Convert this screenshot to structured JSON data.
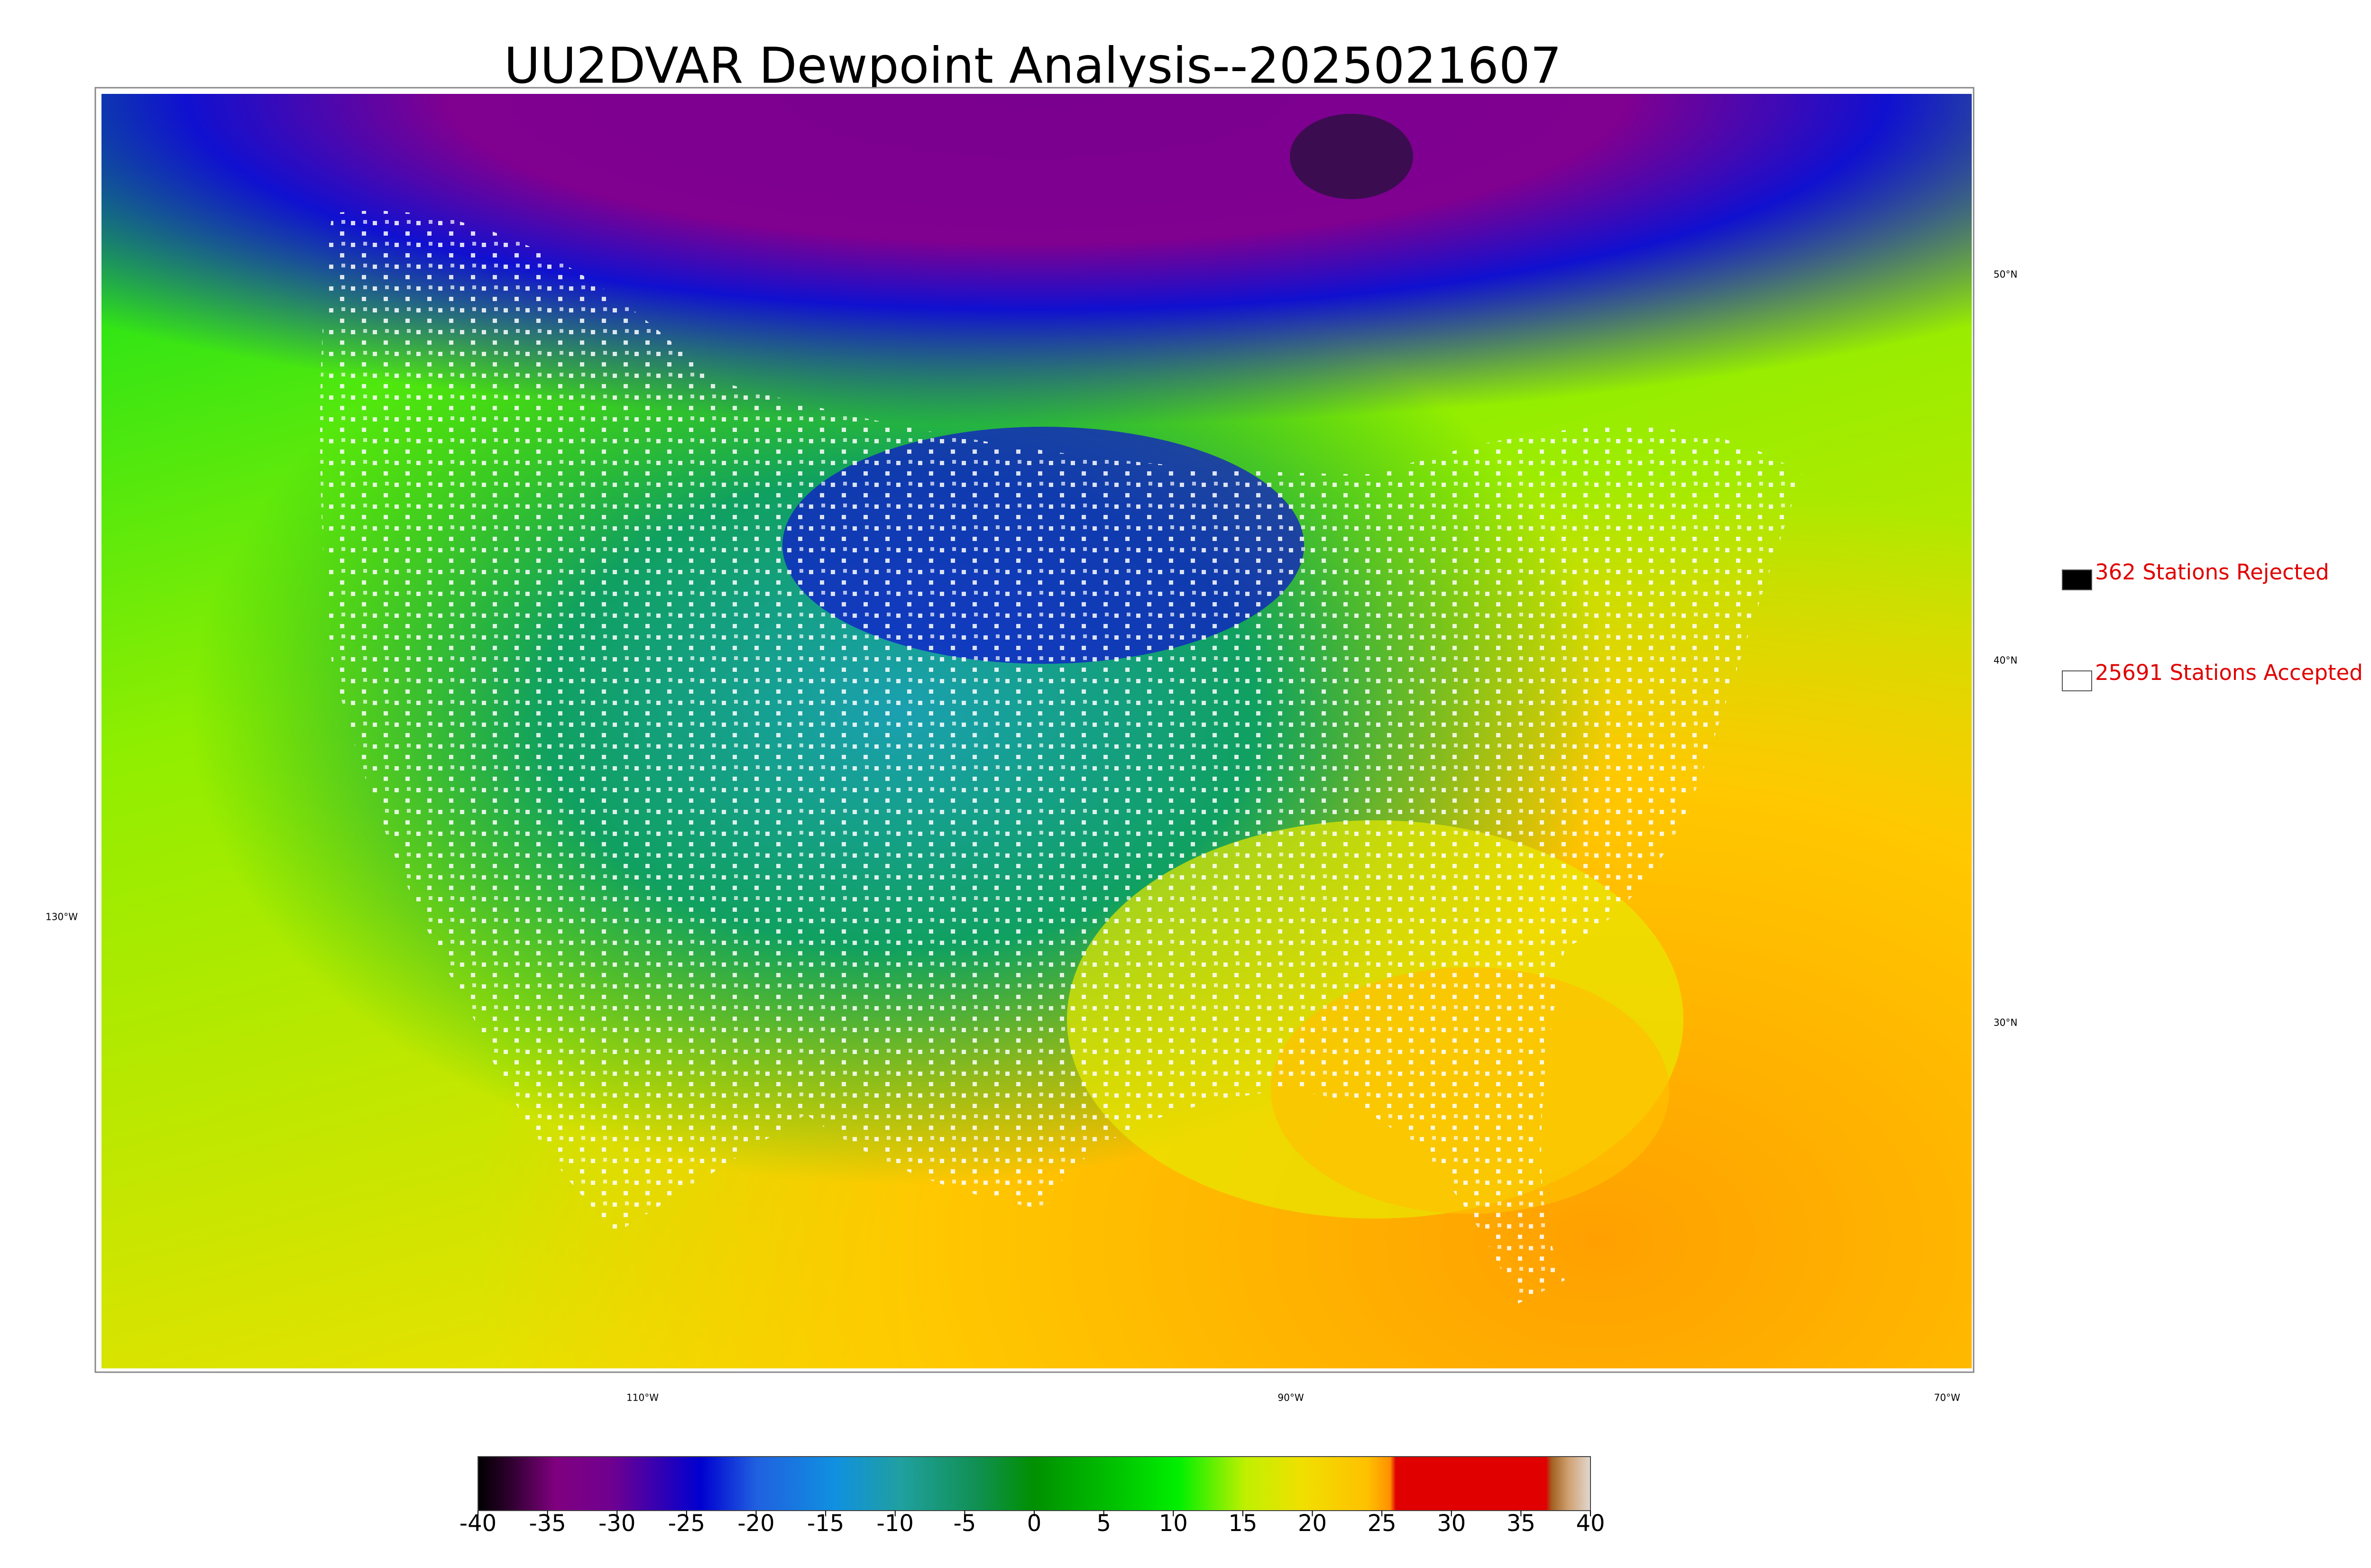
{
  "title": "UU2DVAR Dewpoint Analysis--2025021607",
  "legend": [
    {
      "label": "362 Stations Rejected",
      "swatch": "#000000"
    },
    {
      "label": "25691 Stations Accepted",
      "swatch": "#ffffff"
    }
  ],
  "graticule": {
    "longitudes": [
      "130°W",
      "110°W",
      "90°W",
      "70°W"
    ],
    "latitudes": [
      "50°N",
      "40°N",
      "30°N"
    ]
  },
  "colorbar": {
    "ticks": [
      -40,
      -35,
      -30,
      -25,
      -20,
      -15,
      -10,
      -5,
      0,
      5,
      10,
      15,
      20,
      25,
      30,
      35,
      40
    ]
  }
}
